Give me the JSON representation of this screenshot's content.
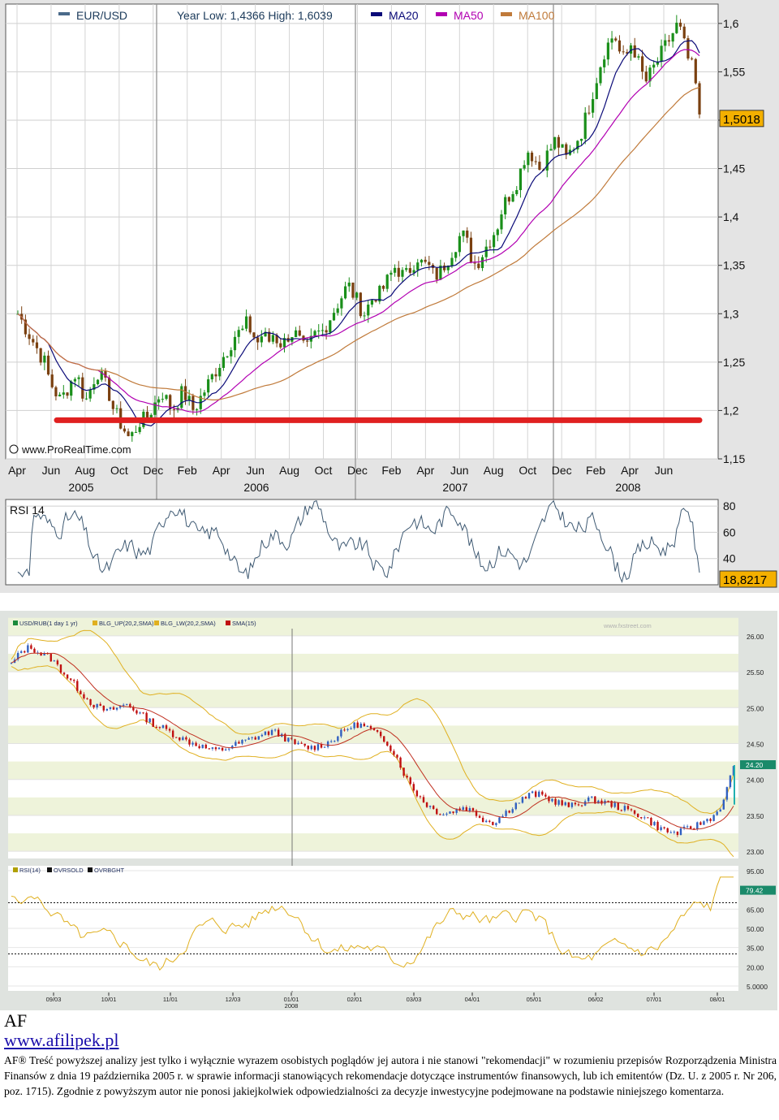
{
  "chart_data": [
    {
      "type": "line",
      "title": "EUR/USD",
      "subtitle": "Year Low: 1,4366 High: 1,6039",
      "legend": [
        "MA20",
        "MA50",
        "MA100"
      ],
      "colors": {
        "price_up": "#1a8f1a",
        "price_down": "#7a4010",
        "ma20": "#0a0a78",
        "ma50": "#b200b2",
        "ma100": "#c07a3a",
        "support": "#e02020",
        "rsi": "#3f5a73"
      },
      "watermark": "www.ProRealTime.com",
      "y_ticks": [
        "1,6",
        "1,55",
        "1,5",
        "1,45",
        "1,4",
        "1,35",
        "1,3",
        "1,25",
        "1,2",
        "1,15"
      ],
      "ylim": [
        1.15,
        1.62
      ],
      "last_price": "1,5018",
      "support_level": 1.19,
      "x_month_labels": [
        "Apr",
        "Jun",
        "Aug",
        "Oct",
        "Dec",
        "Feb",
        "Apr",
        "Jun",
        "Aug",
        "Oct",
        "Dec",
        "Feb",
        "Apr",
        "Jun",
        "Aug",
        "Oct",
        "Dec",
        "Feb",
        "Apr",
        "Jun"
      ],
      "x_year_labels": [
        "2005",
        "2006",
        "2007",
        "2008"
      ],
      "weekly_closes": [
        1.3,
        1.29,
        1.28,
        1.27,
        1.26,
        1.25,
        1.23,
        1.22,
        1.21,
        1.22,
        1.23,
        1.24,
        1.22,
        1.21,
        1.23,
        1.24,
        1.23,
        1.22,
        1.2,
        1.19,
        1.18,
        1.17,
        1.18,
        1.19,
        1.19,
        1.2,
        1.21,
        1.22,
        1.21,
        1.2,
        1.21,
        1.22,
        1.21,
        1.2,
        1.21,
        1.22,
        1.23,
        1.24,
        1.25,
        1.26,
        1.27,
        1.28,
        1.28,
        1.29,
        1.28,
        1.27,
        1.28,
        1.27,
        1.28,
        1.27,
        1.27,
        1.28,
        1.28,
        1.27,
        1.26,
        1.27,
        1.28,
        1.28,
        1.29,
        1.3,
        1.31,
        1.32,
        1.33,
        1.32,
        1.31,
        1.3,
        1.31,
        1.32,
        1.32,
        1.33,
        1.34,
        1.35,
        1.34,
        1.34,
        1.35,
        1.36,
        1.35,
        1.35,
        1.34,
        1.34,
        1.35,
        1.36,
        1.37,
        1.38,
        1.38,
        1.36,
        1.35,
        1.36,
        1.37,
        1.38,
        1.39,
        1.41,
        1.42,
        1.43,
        1.44,
        1.46,
        1.47,
        1.46,
        1.45,
        1.46,
        1.47,
        1.48,
        1.47,
        1.46,
        1.47,
        1.48,
        1.49,
        1.51,
        1.53,
        1.55,
        1.57,
        1.58,
        1.59,
        1.57,
        1.56,
        1.58,
        1.57,
        1.55,
        1.54,
        1.55,
        1.56,
        1.57,
        1.58,
        1.59,
        1.6,
        1.58,
        1.56,
        1.55,
        1.5
      ],
      "rsi": {
        "label": "RSI 14",
        "y_ticks": [
          "80",
          "60",
          "40"
        ],
        "ylim": [
          20,
          85
        ],
        "last_value": "18,8217"
      }
    },
    {
      "type": "line",
      "legend": [
        "USD/RUB(1 day 1 yr)",
        "BLG_UP(20,2,SMA)",
        "BLG_LW(20,2,SMA)",
        "SMA(15)"
      ],
      "colors": {
        "up_candle": "#3060c0",
        "down_candle": "#c01010",
        "bollinger": "#e0b020",
        "sma": "#c03020",
        "rsi": "#e0b020",
        "background_band": "#eef3da"
      },
      "watermark": "www.fxstreet.com",
      "y_ticks": [
        "26.00",
        "25.50",
        "25.00",
        "24.50",
        "24.00",
        "23.50",
        "23.00"
      ],
      "ylim": [
        22.9,
        26.1
      ],
      "last_price": "24.20",
      "x_labels": [
        "09/03",
        "10/01",
        "11/01",
        "12/03",
        "01/01",
        "02/01",
        "03/03",
        "04/01",
        "05/01",
        "06/02",
        "07/01",
        "08/01"
      ],
      "x_year_label": "2008",
      "weekly_closes": [
        25.6,
        25.78,
        25.85,
        25.75,
        25.7,
        25.55,
        25.4,
        25.25,
        25.1,
        25.0,
        24.95,
        25.0,
        25.05,
        24.95,
        24.85,
        24.75,
        24.7,
        24.62,
        24.55,
        24.5,
        24.45,
        24.4,
        24.42,
        24.47,
        24.52,
        24.57,
        24.62,
        24.67,
        24.62,
        24.52,
        24.47,
        24.44,
        24.47,
        24.52,
        24.62,
        24.72,
        24.77,
        24.72,
        24.62,
        24.52,
        24.32,
        24.02,
        23.82,
        23.67,
        23.57,
        23.52,
        23.57,
        23.62,
        23.55,
        23.45,
        23.4,
        23.5,
        23.62,
        23.72,
        23.8,
        23.78,
        23.72,
        23.67,
        23.62,
        23.67,
        23.72,
        23.7,
        23.67,
        23.62,
        23.57,
        23.52,
        23.45,
        23.35,
        23.28,
        23.25,
        23.3,
        23.35,
        23.42,
        23.5,
        23.7,
        24.2
      ],
      "rsi": {
        "legend": [
          "RSI(14)",
          "OVRSOLD",
          "OVRBGHT"
        ],
        "y_ticks": [
          "95.00",
          "79.42",
          "65.00",
          "50.00",
          "35.00",
          "20.00",
          "5.0000"
        ],
        "ylim": [
          5,
          95
        ],
        "overbought": 70,
        "oversold": 30,
        "last_value": "79.42"
      }
    }
  ],
  "footer": {
    "title": "AF",
    "link": "www.afilipek.pl",
    "disclaimer": "AF® Treść powyższej analizy jest tylko i wyłącznie wyrazem osobistych poglądów jej autora i nie stanowi \"rekomendacji\" w rozumieniu przepisów Rozporządzenia Ministra Finansów z dnia 19 października 2005 r. w sprawie informacji stanowiących rekomendacje dotyczące instrumentów finansowych, lub ich emitentów (Dz. U. z 2005 r. Nr 206, poz. 1715). Zgodnie z powyższym autor nie ponosi jakiejkolwiek odpowiedzialności za decyzje inwestycyjne podejmowane na podstawie niniejszego komentarza."
  }
}
